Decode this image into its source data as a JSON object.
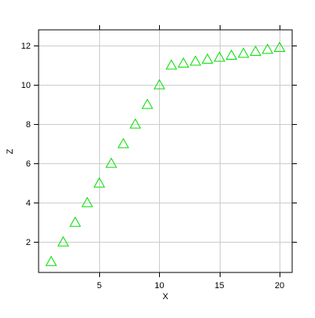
{
  "chart_data": {
    "type": "scatter",
    "title": "",
    "xlabel": "X",
    "ylabel": "Z",
    "xlim": [
      -0.05,
      21.05
    ],
    "ylim": [
      0.45,
      12.8
    ],
    "x_ticks": [
      5,
      10,
      15,
      20
    ],
    "y_ticks": [
      2,
      4,
      6,
      8,
      10,
      12
    ],
    "grid": true,
    "marker": "triangle-open",
    "colors": {
      "marker": "#00dd00",
      "grid": "#cccccc",
      "frame": "#000000",
      "text": "#000000"
    },
    "series": [
      {
        "x": [
          1,
          2,
          3,
          4,
          5,
          6,
          7,
          8,
          9,
          10,
          11,
          12,
          13,
          14,
          15,
          16,
          17,
          18,
          19,
          20
        ],
        "y": [
          1,
          2,
          3,
          4,
          5,
          6,
          7,
          8,
          9,
          10,
          11,
          11.1,
          11.2,
          11.3,
          11.4,
          11.5,
          11.6,
          11.7,
          11.8,
          11.9
        ]
      }
    ]
  }
}
